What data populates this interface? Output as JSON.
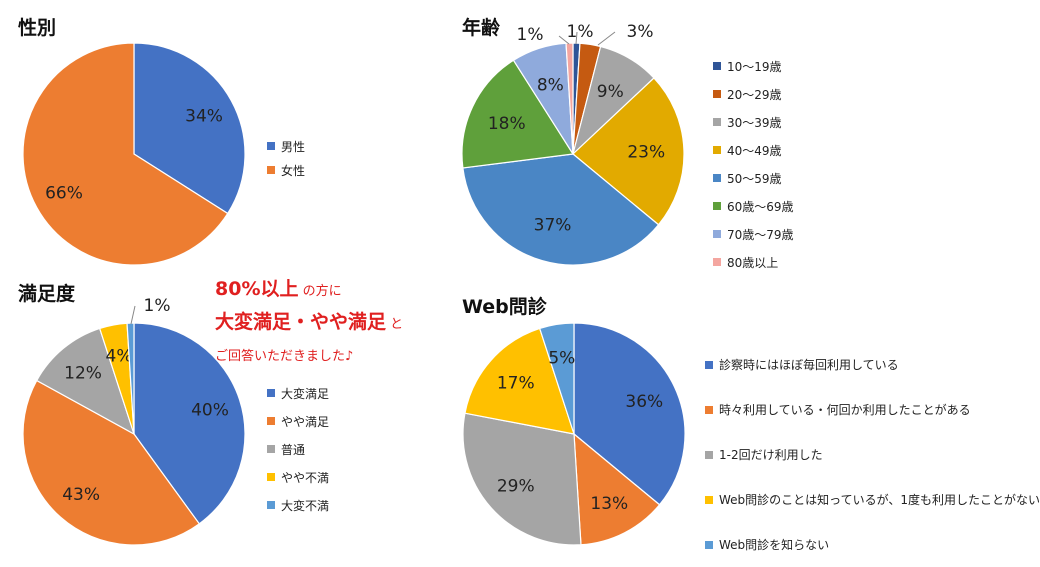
{
  "charts": [
    {
      "key": "gender",
      "title": "性別",
      "type": "pie",
      "categories": [
        "男性",
        "女性"
      ],
      "values": [
        34,
        66
      ],
      "labels": [
        "34%",
        "66%"
      ],
      "colors": [
        "#4472c4",
        "#ed7d31"
      ],
      "legend": "right"
    },
    {
      "key": "age",
      "title": "年齢",
      "type": "pie",
      "categories": [
        "10～19歳",
        "20～29歳",
        "30～39歳",
        "40～49歳",
        "50～59歳",
        "60歳～69歳",
        "70歳～79歳",
        "80歳以上"
      ],
      "values": [
        1,
        3,
        9,
        23,
        37,
        18,
        8,
        1
      ],
      "labels": [
        "1%",
        "3%",
        "9%",
        "23%",
        "37%",
        "18%",
        "8%",
        "1%"
      ],
      "colors": [
        "#2f5597",
        "#c55a11",
        "#a5a5a5",
        "#e2aa00",
        "#4a86c5",
        "#5fa03b",
        "#8faadc",
        "#f4a6a0"
      ],
      "legend": "right"
    },
    {
      "key": "satisfaction",
      "title": "満足度",
      "type": "pie",
      "categories": [
        "大変満足",
        "やや満足",
        "普通",
        "やや不満",
        "大変不満"
      ],
      "values": [
        40,
        43,
        12,
        4,
        1
      ],
      "labels": [
        "40%",
        "43%",
        "12%",
        "4%",
        "1%"
      ],
      "colors": [
        "#4472c4",
        "#ed7d31",
        "#a5a5a5",
        "#ffc000",
        "#5b9bd5"
      ],
      "legend": "right"
    },
    {
      "key": "web",
      "title": "Web問診",
      "type": "pie",
      "categories": [
        "診察時にはほぼ毎回利用している",
        "時々利用している・何回か利用したことがある",
        "1-2回だけ利用した",
        "Web問診のことは知っているが、1度も利用したことがない",
        "Web問診を知らない"
      ],
      "values": [
        36,
        13,
        29,
        17,
        5
      ],
      "labels": [
        "36%",
        "13%",
        "29%",
        "17%",
        "5%"
      ],
      "colors": [
        "#4472c4",
        "#ed7d31",
        "#a5a5a5",
        "#ffc000",
        "#5b9bd5"
      ],
      "legend": "right"
    }
  ],
  "callout": {
    "line1_big": "80%以上",
    "line1_small": " の方に",
    "line2_big": "大変満足・やや満足",
    "line2_small": " と",
    "line3_small": "ご回答いただきました♪"
  }
}
